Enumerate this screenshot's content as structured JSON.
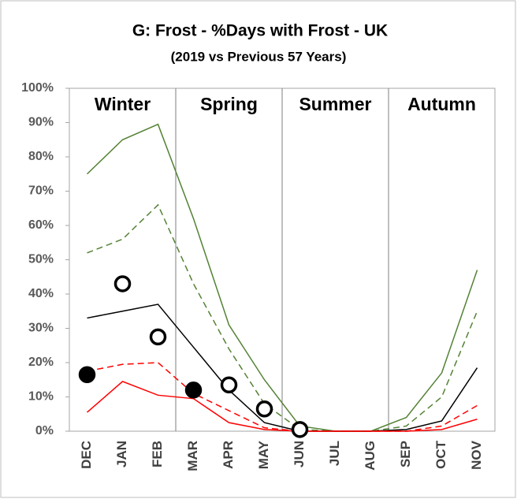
{
  "chart_data": {
    "type": "line",
    "title": "G: Frost - %Days with Frost - UK",
    "subtitle": "(2019 vs Previous 57 Years)",
    "categories": [
      "DEC",
      "JAN",
      "FEB",
      "MAR",
      "APR",
      "MAY",
      "JUN",
      "JUL",
      "AUG",
      "SEP",
      "OCT",
      "NOV"
    ],
    "seasons": [
      "Winter",
      "Spring",
      "Summer",
      "Autumn"
    ],
    "ylim": [
      0,
      100
    ],
    "yticks": [
      {
        "value": 0,
        "label": "0%"
      },
      {
        "value": 10,
        "label": "10%"
      },
      {
        "value": 20,
        "label": "20%"
      },
      {
        "value": 30,
        "label": "30%"
      },
      {
        "value": 40,
        "label": "40%"
      },
      {
        "value": 50,
        "label": "50%"
      },
      {
        "value": 60,
        "label": "60%"
      },
      {
        "value": 70,
        "label": "70%"
      },
      {
        "value": 80,
        "label": "80%"
      },
      {
        "value": 90,
        "label": "90%"
      },
      {
        "value": 100,
        "label": "100%"
      }
    ],
    "series": [
      {
        "color": "#548235",
        "style": "solid",
        "values": [
          75,
          85,
          89.5,
          62,
          31,
          15,
          1.5,
          0,
          0,
          4,
          17,
          47
        ]
      },
      {
        "color": "#548235",
        "style": "dashed",
        "values": [
          52,
          56,
          66,
          43,
          24,
          8,
          0.5,
          0,
          0,
          1.5,
          10,
          35
        ]
      },
      {
        "color": "#000000",
        "style": "solid",
        "values": [
          33,
          35,
          37,
          24.5,
          12,
          2.5,
          0,
          0,
          0,
          0.5,
          3,
          18.5
        ]
      },
      {
        "color": "#ff0000",
        "style": "dashed",
        "values": [
          17.5,
          19.5,
          20,
          11,
          6,
          1,
          0,
          0,
          0,
          0,
          1.5,
          7.5
        ]
      },
      {
        "color": "#ff0000",
        "style": "solid",
        "values": [
          5.5,
          14.5,
          10.5,
          9.5,
          2.5,
          0.5,
          0,
          0,
          0,
          0,
          0.5,
          3.5
        ]
      },
      {
        "color": "#000000",
        "style": "marker-filled",
        "values": [
          16.5,
          null,
          null,
          12,
          null,
          null,
          null,
          null,
          null,
          null,
          null,
          null
        ]
      },
      {
        "color": "#000000",
        "style": "marker-open",
        "values": [
          null,
          43,
          27.5,
          null,
          13.5,
          6.5,
          0.5,
          null,
          null,
          null,
          null,
          null
        ]
      }
    ]
  }
}
